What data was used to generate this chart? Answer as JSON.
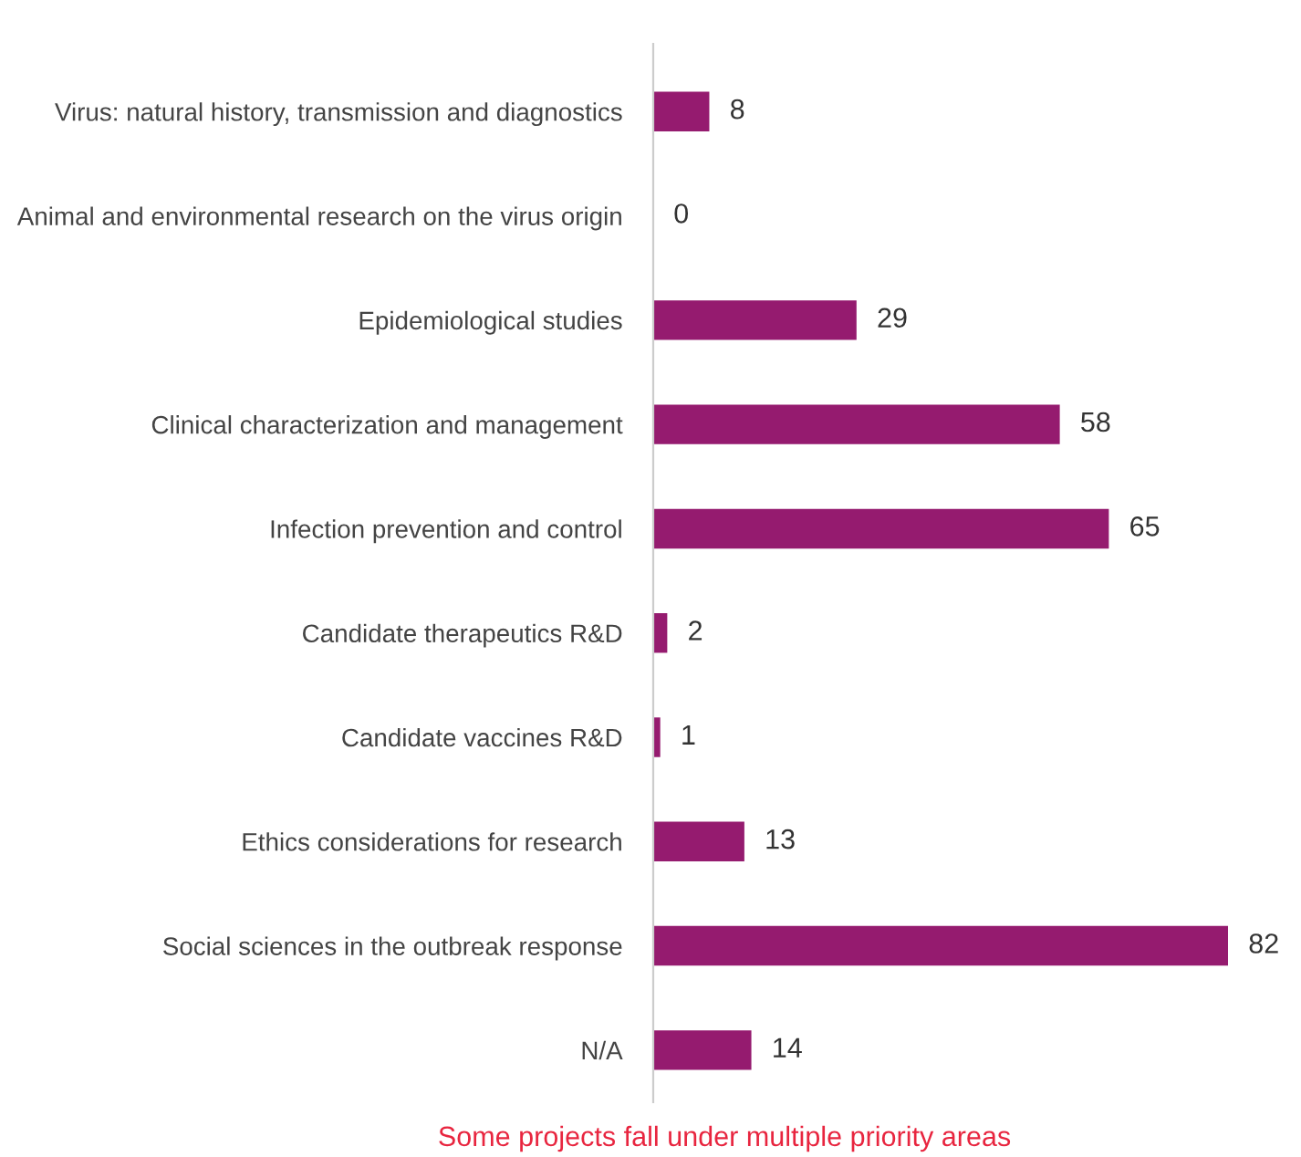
{
  "chart_data": {
    "type": "bar",
    "orientation": "horizontal",
    "categories": [
      "Virus: natural history, transmission and diagnostics",
      "Animal and environmental research on the virus origin",
      "Epidemiological studies",
      "Clinical characterization and management",
      "Infection prevention and control",
      "Candidate therapeutics R&D",
      "Candidate vaccines R&D",
      "Ethics considerations for research",
      "Social sciences in the outbreak response",
      "N/A"
    ],
    "values": [
      8,
      0,
      29,
      58,
      65,
      2,
      1,
      13,
      82,
      14
    ],
    "color": "#951b6f",
    "data_labels": true,
    "grid": false,
    "legend": false,
    "annotations": [
      "Some projects fall under multiple priority areas"
    ]
  }
}
